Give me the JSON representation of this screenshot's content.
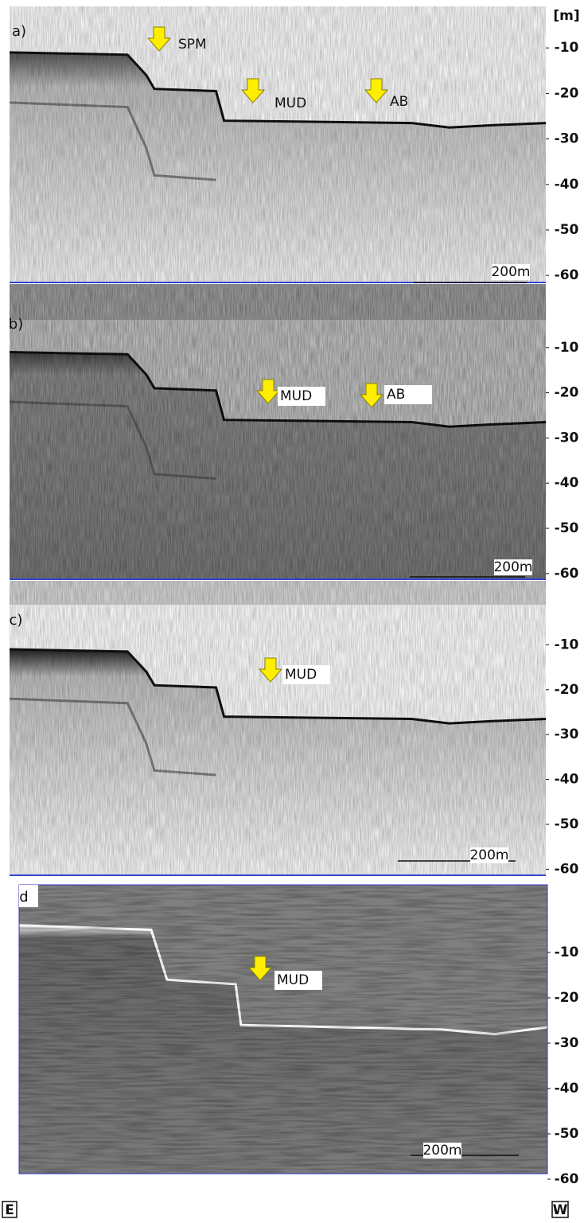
{
  "unit_label": "[m]",
  "panels": [
    {
      "label": "a)",
      "annotations": [
        "SPM",
        "MUD",
        "AB"
      ],
      "scale_bar": "200m",
      "depth_ticks": [
        -10,
        -20,
        -30,
        -40,
        -50,
        -60
      ]
    },
    {
      "label": "b)",
      "annotations": [
        "MUD",
        "AB"
      ],
      "scale_bar": "200m",
      "depth_ticks": [
        -10,
        -20,
        -30,
        -40,
        -50,
        -60
      ]
    },
    {
      "label": "c)",
      "annotations": [
        "MUD"
      ],
      "scale_bar": "200m",
      "depth_ticks": [
        -10,
        -20,
        -30,
        -40,
        -50,
        -60
      ]
    },
    {
      "label": "d",
      "annotations": [
        "MUD"
      ],
      "scale_bar": "200m",
      "depth_ticks": [
        -10,
        -20,
        -30,
        -40,
        -50,
        -60
      ]
    }
  ],
  "directions": [
    "E",
    "W"
  ]
}
